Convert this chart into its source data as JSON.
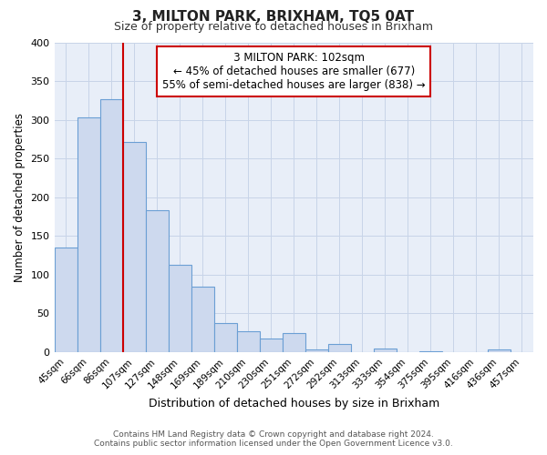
{
  "title": "3, MILTON PARK, BRIXHAM, TQ5 0AT",
  "subtitle": "Size of property relative to detached houses in Brixham",
  "xlabel": "Distribution of detached houses by size in Brixham",
  "ylabel": "Number of detached properties",
  "bar_labels": [
    "45sqm",
    "66sqm",
    "86sqm",
    "107sqm",
    "127sqm",
    "148sqm",
    "169sqm",
    "189sqm",
    "210sqm",
    "230sqm",
    "251sqm",
    "272sqm",
    "292sqm",
    "313sqm",
    "333sqm",
    "354sqm",
    "375sqm",
    "395sqm",
    "416sqm",
    "436sqm",
    "457sqm"
  ],
  "bar_values": [
    135,
    303,
    327,
    271,
    183,
    113,
    84,
    37,
    27,
    17,
    25,
    4,
    11,
    0,
    5,
    0,
    1,
    0,
    0,
    4,
    0
  ],
  "bar_color": "#cdd9ee",
  "bar_edge_color": "#6b9fd4",
  "marker_index": 3,
  "marker_label": "3 MILTON PARK: 102sqm",
  "annotation_line1": "← 45% of detached houses are smaller (677)",
  "annotation_line2": "55% of semi-detached houses are larger (838) →",
  "marker_color": "#cc0000",
  "ylim": [
    0,
    400
  ],
  "yticks": [
    0,
    50,
    100,
    150,
    200,
    250,
    300,
    350,
    400
  ],
  "footer_line1": "Contains HM Land Registry data © Crown copyright and database right 2024.",
  "footer_line2": "Contains public sector information licensed under the Open Government Licence v3.0.",
  "background_color": "#ffffff",
  "annotation_box_color": "#ffffff",
  "annotation_box_edge": "#cc0000",
  "grid_color": "#c8d4e8"
}
